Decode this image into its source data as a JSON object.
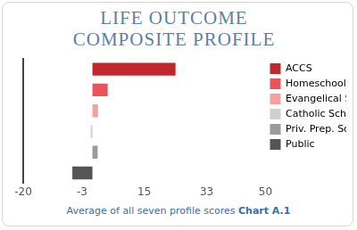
{
  "chart_data": {
    "type": "bar",
    "title": "LIFE OUTCOME COMPOSITE PROFILE",
    "orientation": "horizontal",
    "categories": [
      "ACCS",
      "Homeschools",
      "Evangelical Schools",
      "Catholic Schools",
      "Priv. Prep. Schools",
      "Public"
    ],
    "values": [
      24,
      4.4,
      1.6,
      -0.5,
      1.5,
      -5.8
    ],
    "colors": [
      "#c0282d",
      "#e8545a",
      "#f4a0a0",
      "#d0d0d0",
      "#9a9a9a",
      "#555555"
    ],
    "xlim": [
      -20,
      50
    ],
    "xticks": [
      -20,
      -3,
      15,
      33,
      50
    ],
    "xlabel": "Average of all seven profile scores",
    "figure_label": "Chart A.1",
    "legend": "right",
    "grid": false,
    "tick_labels": "x"
  }
}
